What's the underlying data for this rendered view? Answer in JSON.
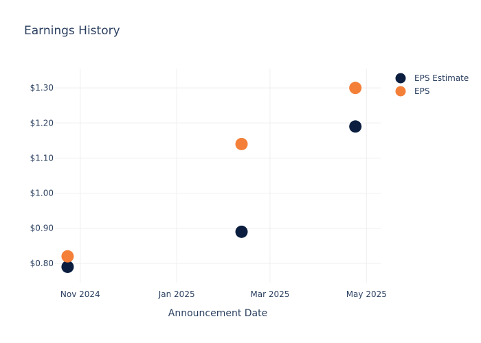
{
  "chart_data": {
    "type": "scatter",
    "title": "Earnings History",
    "xlabel": "Announcement Date",
    "ylabel": "",
    "x_ticks": [
      {
        "date": "2024-11-01",
        "label": "Nov 2024"
      },
      {
        "date": "2025-01-01",
        "label": "Jan 2025"
      },
      {
        "date": "2025-03-01",
        "label": "Mar 2025"
      },
      {
        "date": "2025-05-01",
        "label": "May 2025"
      }
    ],
    "xlim": [
      "2024-10-16",
      "2025-05-10"
    ],
    "y_ticks": [
      {
        "value": 0.8,
        "label": "$0.80"
      },
      {
        "value": 0.9,
        "label": "$0.90"
      },
      {
        "value": 1.0,
        "label": "$1.00"
      },
      {
        "value": 1.1,
        "label": "$1.10"
      },
      {
        "value": 1.2,
        "label": "$1.20"
      },
      {
        "value": 1.3,
        "label": "$1.30"
      }
    ],
    "ylim": [
      0.745,
      1.355
    ],
    "grid": true,
    "legend_position": "top-right",
    "series": [
      {
        "name": "EPS Estimate",
        "color": "#0b1e3f",
        "points": [
          {
            "x": "2024-10-24",
            "y": 0.79
          },
          {
            "x": "2025-02-11",
            "y": 0.89
          },
          {
            "x": "2025-04-24",
            "y": 1.19
          }
        ]
      },
      {
        "name": "EPS",
        "color": "#f47f38",
        "points": [
          {
            "x": "2024-10-24",
            "y": 0.82
          },
          {
            "x": "2025-02-11",
            "y": 1.14
          },
          {
            "x": "2025-04-24",
            "y": 1.3
          }
        ]
      }
    ]
  }
}
